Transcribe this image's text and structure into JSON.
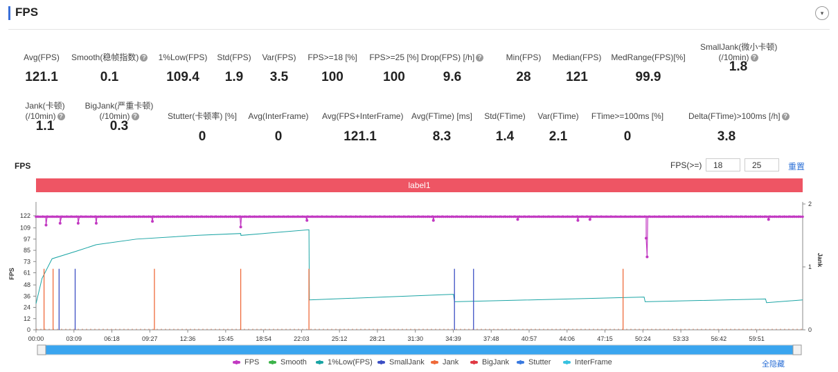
{
  "header": {
    "title": "FPS",
    "collapse_icon": "▾"
  },
  "metrics_row1": [
    {
      "label": "Avg(FPS)",
      "value": "121.1",
      "help": false
    },
    {
      "label": "Smooth(稳帧指数)",
      "value": "0.1",
      "help": true
    },
    {
      "label": "1%Low(FPS)",
      "value": "109.4",
      "help": false
    },
    {
      "label": "Std(FPS)",
      "value": "1.9",
      "help": false
    },
    {
      "label": "Var(FPS)",
      "value": "3.5",
      "help": false
    },
    {
      "label": "FPS>=18 [%]",
      "value": "100",
      "help": false
    },
    {
      "label": "FPS>=25 [%]",
      "value": "100",
      "help": false
    },
    {
      "label": "Drop(FPS) [/h]",
      "value": "9.6",
      "help": true
    },
    {
      "label": "Min(FPS)",
      "value": "28",
      "help": false
    },
    {
      "label": "Median(FPS)",
      "value": "121",
      "help": false
    },
    {
      "label": "MedRange(FPS)[%]",
      "value": "99.9",
      "help": false
    },
    {
      "label": "SmallJank(微小卡顿)",
      "label2": "(/10min)",
      "value": "1.8",
      "help": true
    }
  ],
  "metrics_row2": [
    {
      "label": "Jank(卡顿)",
      "label2": "(/10min)",
      "value": "1.1",
      "help": true
    },
    {
      "label": "BigJank(严重卡顿)",
      "label2": "(/10min)",
      "value": "0.3",
      "help": true
    },
    {
      "label": "Stutter(卡顿率) [%]",
      "value": "0",
      "help": false
    },
    {
      "label": "Avg(InterFrame)",
      "value": "0",
      "help": false
    },
    {
      "label": "Avg(FPS+InterFrame)",
      "value": "121.1",
      "help": false
    },
    {
      "label": "Avg(FTime) [ms]",
      "value": "8.3",
      "help": false
    },
    {
      "label": "Std(FTime)",
      "value": "1.4",
      "help": false
    },
    {
      "label": "Var(FTime)",
      "value": "2.1",
      "help": false
    },
    {
      "label": "FTime>=100ms [%]",
      "value": "0",
      "help": false
    },
    {
      "label": "Delta(FTime)>100ms [/h]",
      "value": "3.8",
      "help": true
    }
  ],
  "chart_section": {
    "title": "FPS",
    "filter_label": "FPS(>=)",
    "filter_value_1": "18",
    "filter_value_2": "25",
    "reset_label": "重置",
    "label_bar": "label1",
    "hide_all_label": "全隐藏"
  },
  "chart_data": {
    "type": "line",
    "ylabel": "FPS",
    "y2label": "Jank",
    "yticks": [
      0,
      12,
      24,
      36,
      48,
      61,
      73,
      85,
      97,
      109,
      122
    ],
    "y2ticks": [
      0,
      1,
      2
    ],
    "xticks": [
      "00:00",
      "03:09",
      "06:18",
      "09:27",
      "12:36",
      "15:45",
      "18:54",
      "22:03",
      "25:12",
      "28:21",
      "31:30",
      "34:39",
      "37:48",
      "40:57",
      "44:06",
      "47:15",
      "50:24",
      "53:33",
      "56:42",
      "59:51"
    ],
    "x_range_seconds": [
      0,
      3820
    ],
    "series": [
      {
        "name": "FPS",
        "color": "#c23ac2",
        "base": 121,
        "dips": [
          [
            50,
            112
          ],
          [
            120,
            114
          ],
          [
            210,
            114
          ],
          [
            300,
            114
          ],
          [
            580,
            116
          ],
          [
            1020,
            110
          ],
          [
            1350,
            117
          ],
          [
            1980,
            117
          ],
          [
            2400,
            118
          ],
          [
            2700,
            117
          ],
          [
            2760,
            118
          ],
          [
            3040,
            98
          ],
          [
            3045,
            78
          ],
          [
            3650,
            118
          ]
        ]
      },
      {
        "name": "Smooth",
        "color": "#3db34a"
      },
      {
        "name": "1%Low(FPS)",
        "color": "#19a4a4",
        "points": [
          [
            0,
            28
          ],
          [
            30,
            55
          ],
          [
            80,
            76
          ],
          [
            200,
            84
          ],
          [
            300,
            91
          ],
          [
            500,
            97
          ],
          [
            800,
            101
          ],
          [
            1020,
            103
          ],
          [
            1021,
            101
          ],
          [
            1360,
            107
          ],
          [
            1362,
            32
          ],
          [
            2080,
            38
          ],
          [
            2085,
            30
          ],
          [
            3030,
            35
          ],
          [
            3035,
            30
          ],
          [
            3635,
            33
          ],
          [
            3640,
            29
          ],
          [
            3820,
            32
          ]
        ]
      },
      {
        "name": "SmallJank",
        "color": "#3c4fc4",
        "spikes": [
          [
            115,
            0.97
          ],
          [
            195,
            0.97
          ],
          [
            2085,
            0.97
          ],
          [
            2180,
            0.97
          ]
        ]
      },
      {
        "name": "Jank",
        "color": "#ef6a3a",
        "spikes": [
          [
            40,
            0.97
          ],
          [
            85,
            0.97
          ],
          [
            590,
            0.97
          ],
          [
            1020,
            0.97
          ],
          [
            1360,
            0.97
          ],
          [
            2925,
            0.97
          ]
        ]
      },
      {
        "name": "BigJank",
        "color": "#e03a45",
        "spikes": []
      },
      {
        "name": "Stutter",
        "color": "#3a7ae0"
      },
      {
        "name": "InterFrame",
        "color": "#38c2e0"
      }
    ]
  }
}
